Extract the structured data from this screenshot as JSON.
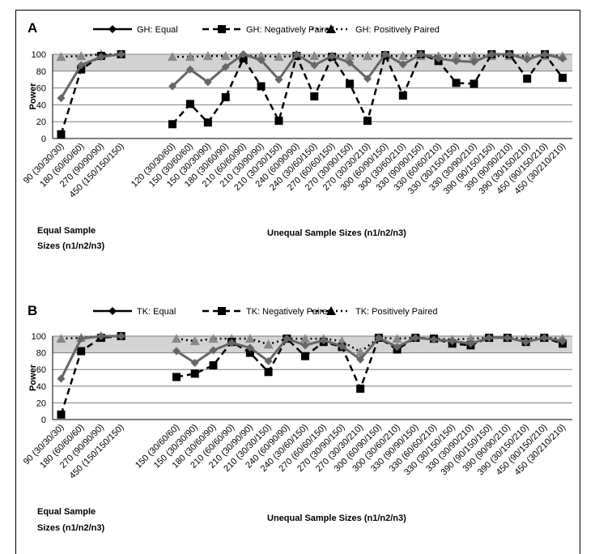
{
  "chart_data": [
    {
      "panel": "A",
      "type": "line",
      "ylabel": "Power",
      "ylim": [
        0,
        100
      ],
      "yticks": [
        0,
        20,
        40,
        60,
        80,
        100
      ],
      "shaded_band": [
        80,
        100
      ],
      "groups": [
        {
          "label_lines": [
            "Equal Sample",
            "Sizes (n1/n2/n3)"
          ],
          "categories": [
            "90 (30/30/30)",
            "180 (60/60/60)",
            "270 (90/90/90)",
            "450 (150/150/150)"
          ]
        },
        {
          "label_lines": [
            "Unequal Sample Sizes (n1/n2/n3)"
          ],
          "categories": [
            "120 (30/30/60)",
            "150 (30/60/60)",
            "150 (30/30/90)",
            "180 (30/60/90)",
            "210 (60/60/90)",
            "210 (30/90/90)",
            "210 (30/30/150)",
            "240 (60/90/90)",
            "240 (30/60/150)",
            "270 (60/60/150)",
            "270 (30/90/150)",
            "270 (30/30/210)",
            "300 (60/90/150)",
            "300 (30/60/210)",
            "330 (90/90/150)",
            "330 (60/60/210)",
            "330 (30/150/150)",
            "330 (30/90/210)",
            "390 (90/150/150)",
            "390 (90/90/210)",
            "390 (30/150/210)",
            "450 (90/150/210)",
            "450 (30/210/210)"
          ]
        }
      ],
      "series": [
        {
          "name": "GH: Equal",
          "line": "solid",
          "marker": "diamond",
          "values": [
            [
              48,
              87,
              97,
              100
            ],
            [
              62,
              82,
              67,
              85,
              100,
              93,
              70,
              100,
              87,
              98,
              90,
              71,
              100,
              88,
              100,
              95,
              92,
              91,
              100,
              100,
              94,
              100,
              95
            ]
          ]
        },
        {
          "name": "GH: Negatively Paired",
          "line": "dashed",
          "marker": "square",
          "values": [
            [
              5,
              82,
              98,
              100
            ],
            [
              17,
              41,
              19,
              49,
              95,
              62,
              21,
              98,
              50,
              97,
              65,
              21,
              99,
              51,
              100,
              92,
              66,
              65,
              100,
              100,
              71,
              100,
              72
            ]
          ]
        },
        {
          "name": "GH: Positively Paired",
          "line": "dotted",
          "marker": "triangle",
          "values": [
            [
              97,
              98,
              100,
              100
            ],
            [
              97,
              97,
              98,
              98,
              98,
              98,
              97,
              98,
              98,
              98,
              98,
              98,
              98,
              98,
              98,
              98,
              98,
              98,
              98,
              98,
              98,
              98,
              98
            ]
          ]
        }
      ]
    },
    {
      "panel": "B",
      "type": "line",
      "ylabel": "Power",
      "ylim": [
        0,
        100
      ],
      "yticks": [
        0,
        20,
        40,
        60,
        80,
        100
      ],
      "shaded_band": [
        80,
        100
      ],
      "groups": [
        {
          "label_lines": [
            "Equal Sample",
            "Sizes (n1/n2/n3)"
          ],
          "categories": [
            "90 (30/30/30)",
            "180 (60/60/60)",
            "270 (90/90/90)",
            "450 (150/150/150)"
          ]
        },
        {
          "label_lines": [
            "Unequal Sample Sizes (n1/n2/n3)"
          ],
          "categories": [
            "150 (30/60/60)",
            "150 (30/30/90)",
            "180 (30/60/90)",
            "210 (60/60/90)",
            "210 (30/90/90)",
            "210 (30/30/150)",
            "240 (60/90/90)",
            "240 (30/60/150)",
            "270 (60/60/150)",
            "270 (30/90/150)",
            "270 (30/30/210)",
            "300 (60/90/150)",
            "300 (30/60/210)",
            "330 (90/90/150)",
            "330 (60/60/210)",
            "330 (30/150/150)",
            "330 (30/90/210)",
            "390 (90/150/150)",
            "390 (90/90/210)",
            "390 (30/150/210)",
            "450 (90/150/210)",
            "450 (30/210/210)"
          ]
        }
      ],
      "series": [
        {
          "name": "TK: Equal",
          "line": "solid",
          "marker": "diamond",
          "values": [
            [
              49,
              97,
              100,
              100
            ],
            [
              82,
              68,
              83,
              92,
              86,
              70,
              97,
              89,
              95,
              88,
              72,
              98,
              87,
              98,
              96,
              94,
              91,
              98,
              98,
              93,
              98,
              94
            ]
          ]
        },
        {
          "name": "TK: Negatively Paired",
          "line": "dashed",
          "marker": "square",
          "values": [
            [
              6,
              82,
              98,
              100
            ],
            [
              51,
              55,
              65,
              93,
              80,
              57,
              97,
              76,
              93,
              87,
              37,
              98,
              84,
              98,
              97,
              91,
              89,
              98,
              98,
              93,
              98,
              91
            ]
          ]
        },
        {
          "name": "TK: Positively Paired",
          "line": "dotted",
          "marker": "triangle",
          "values": [
            [
              97,
              98,
              100,
              100
            ],
            [
              97,
              94,
              97,
              97,
              97,
              90,
              97,
              97,
              97,
              94,
              81,
              98,
              97,
              98,
              97,
              96,
              97,
              98,
              98,
              97,
              98,
              97
            ]
          ]
        }
      ]
    }
  ],
  "colors": {
    "equal": "#000000",
    "negative": "#000000",
    "positive": "#000000",
    "overlap": "#7f7f7f",
    "band": "#d3d3d3",
    "grid": "#7f7f7f"
  }
}
